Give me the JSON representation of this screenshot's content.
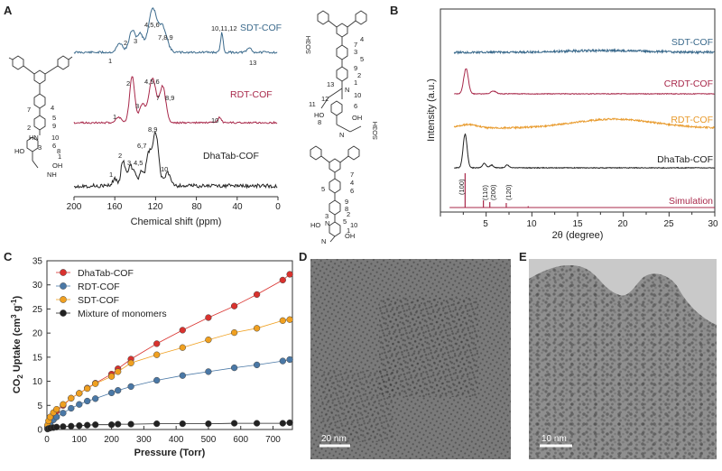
{
  "panels": {
    "A": {
      "label": "A",
      "xlabel": "Chemical shift (ppm)",
      "xticks": [
        "200",
        "160",
        "120",
        "80",
        "40",
        "0"
      ],
      "series": [
        {
          "name": "SDT-COF",
          "color": "#3b6a8c",
          "peaks": [
            "1",
            "2",
            "3",
            "4,5,6",
            "7,8,9",
            "10,11,12",
            "13"
          ]
        },
        {
          "name": "RDT-COF",
          "color": "#a8284a",
          "peaks": [
            "1",
            "2",
            "3",
            "4,5,6",
            "7",
            "8,9",
            "10"
          ]
        },
        {
          "name": "DhaTab-COF",
          "color": "#222222",
          "peaks": [
            "1",
            "2",
            "3",
            "4,5",
            "6,7",
            "8,9",
            "10"
          ]
        }
      ],
      "structure_labels": {
        "left": [
          "4",
          "7",
          "5",
          "9",
          "2",
          "HN",
          "10",
          "6",
          "8",
          "1",
          "HO",
          "OH",
          "3",
          "NH"
        ],
        "right": [
          "7",
          "3",
          "4",
          "5",
          "9",
          "2",
          "1",
          "N",
          "10",
          "13",
          "SO3H",
          "11",
          "12",
          "HO",
          "6",
          "8",
          "OH",
          "N",
          "SO3H"
        ],
        "bottom": [
          "7",
          "4",
          "5",
          "6",
          "9",
          "8",
          "3",
          "N",
          "2",
          "HO",
          "5",
          "10",
          "1",
          "OH",
          "N"
        ]
      }
    },
    "B": {
      "label": "B",
      "xlabel": "2θ (degree)",
      "ylabel": "Intensity (a.u.)",
      "xticks": [
        "5",
        "10",
        "15",
        "20",
        "25",
        "30"
      ],
      "series": [
        {
          "name": "SDT-COF",
          "color": "#3b6a8c"
        },
        {
          "name": "CRDT-COF",
          "color": "#a8284a"
        },
        {
          "name": "RDT-COF",
          "color": "#e89a2c"
        },
        {
          "name": "DhaTab-COF",
          "color": "#222222"
        },
        {
          "name": "Simulation",
          "color": "#a8284a"
        }
      ],
      "miller": [
        "(100)",
        "(110)",
        "(200)",
        "(120)"
      ]
    },
    "C": {
      "label": "C",
      "xlabel": "Pressure (Torr)",
      "ylabel": "CO2 Uptake (cm3 g-1)",
      "ylabel_parts": {
        "a": "CO",
        "b": "2",
        "c": " Uptake (cm",
        "d": "3",
        "e": " g",
        "f": "-1",
        "g": ")"
      },
      "xticks": [
        "0",
        "100",
        "200",
        "300",
        "400",
        "500",
        "600",
        "700"
      ],
      "yticks": [
        "0",
        "5",
        "10",
        "15",
        "20",
        "25",
        "30",
        "35"
      ],
      "legend": [
        "DhaTab-COF",
        "RDT-COF",
        "SDT-COF",
        "Mixture of monomers"
      ],
      "colors": [
        "#d9322e",
        "#4a78a6",
        "#f0a020",
        "#222222"
      ]
    },
    "D": {
      "label": "D",
      "scale": "20 nm"
    },
    "E": {
      "label": "E",
      "scale": "10 nm"
    }
  },
  "chart_data": [
    {
      "type": "line",
      "panel": "B",
      "xlabel": "2θ (degree)",
      "ylabel": "Intensity (a.u.)",
      "xlim": [
        0,
        30
      ],
      "series": [
        {
          "name": "SDT-COF",
          "peaks": []
        },
        {
          "name": "CRDT-COF",
          "peaks": [
            2.8,
            5.8
          ]
        },
        {
          "name": "RDT-COF",
          "peaks": []
        },
        {
          "name": "DhaTab-COF",
          "peaks": [
            2.7,
            4.8,
            5.6,
            7.3
          ]
        },
        {
          "name": "Simulation",
          "peaks": [
            2.7,
            4.7,
            5.4,
            7.2
          ]
        }
      ]
    },
    {
      "type": "line",
      "panel": "C",
      "xlabel": "Pressure (Torr)",
      "ylabel": "CO2 Uptake (cm3 g-1)",
      "xlim": [
        0,
        760
      ],
      "ylim": [
        0,
        35
      ],
      "series": [
        {
          "name": "DhaTab-COF",
          "x": [
            2,
            5,
            10,
            20,
            30,
            50,
            75,
            100,
            125,
            150,
            200,
            220,
            260,
            340,
            420,
            500,
            580,
            650,
            730,
            752
          ],
          "y": [
            0.6,
            1.2,
            2.0,
            3.0,
            3.8,
            5.0,
            6.5,
            7.5,
            8.6,
            9.6,
            11.5,
            12.6,
            14.6,
            17.8,
            20.6,
            23.2,
            25.6,
            28.0,
            31.0,
            32.2
          ]
        },
        {
          "name": "RDT-COF",
          "x": [
            2,
            5,
            10,
            20,
            30,
            50,
            75,
            100,
            125,
            150,
            200,
            220,
            260,
            340,
            420,
            500,
            580,
            650,
            730,
            752
          ],
          "y": [
            0.4,
            0.8,
            1.3,
            2.0,
            2.6,
            3.4,
            4.4,
            5.2,
            5.9,
            6.4,
            7.6,
            8.1,
            8.9,
            10.2,
            11.2,
            12.0,
            12.8,
            13.4,
            14.2,
            14.5
          ]
        },
        {
          "name": "SDT-COF",
          "x": [
            2,
            5,
            10,
            20,
            30,
            50,
            75,
            100,
            125,
            150,
            200,
            220,
            260,
            340,
            420,
            500,
            580,
            650,
            730,
            752
          ],
          "y": [
            0.9,
            1.8,
            2.6,
            3.5,
            4.2,
            5.2,
            6.5,
            7.5,
            8.5,
            9.5,
            11.0,
            12.0,
            13.8,
            15.5,
            17.0,
            18.6,
            20.1,
            21.0,
            22.6,
            22.8
          ]
        },
        {
          "name": "Mixture of monomers",
          "x": [
            2,
            5,
            10,
            20,
            30,
            50,
            75,
            100,
            125,
            150,
            200,
            220,
            260,
            340,
            420,
            500,
            580,
            650,
            730,
            752
          ],
          "y": [
            0.1,
            0.2,
            0.3,
            0.4,
            0.5,
            0.6,
            0.7,
            0.8,
            0.9,
            1.0,
            1.0,
            1.1,
            1.1,
            1.2,
            1.2,
            1.2,
            1.3,
            1.3,
            1.3,
            1.4
          ]
        }
      ]
    }
  ]
}
